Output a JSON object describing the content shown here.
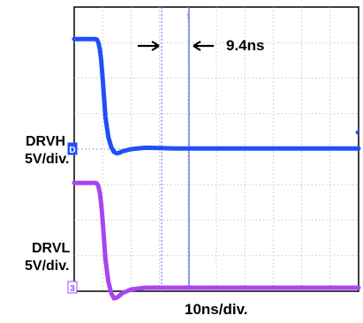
{
  "chart_data": {
    "type": "line",
    "x_axis": {
      "label": "10ns/div.",
      "divisions": 10,
      "ns_per_div": 10
    },
    "y_axis": {
      "divisions": 8
    },
    "grid": true,
    "cursors": {
      "annotation": "9.4ns",
      "marker": "↑"
    },
    "series": [
      {
        "name": "DRVH",
        "scale": "5V/div.",
        "color": "#1f4ff5",
        "ground_marker": "D",
        "x": [
          0,
          2,
          5,
          7.5,
          8,
          8.5,
          9,
          9.5,
          10,
          10.4,
          11,
          12,
          13,
          14,
          15,
          16,
          17,
          20,
          25,
          30,
          35,
          40,
          45,
          50,
          55,
          60,
          70,
          80,
          90,
          100
        ],
        "y": [
          3.1,
          3.1,
          3.1,
          3.1,
          3.08,
          3.0,
          2.82,
          2.5,
          2.0,
          1.55,
          0.9,
          0.35,
          0.06,
          -0.08,
          -0.12,
          -0.1,
          -0.06,
          0.0,
          0.04,
          0.03,
          0.02,
          0.02,
          0.02,
          0.02,
          0.02,
          0.02,
          0.02,
          0.02,
          0.02,
          0.02
        ]
      },
      {
        "name": "DRVL",
        "scale": "5V/div.",
        "color": "#a845f0",
        "ground_marker": "3",
        "x": [
          0,
          2,
          5,
          7.5,
          8,
          8.5,
          9,
          9.5,
          10,
          10.4,
          11,
          12,
          13,
          14,
          15,
          16,
          17,
          20,
          25,
          30,
          35,
          40,
          45,
          50,
          55,
          60,
          70,
          80,
          90,
          100
        ],
        "y": [
          -0.95,
          -0.95,
          -0.95,
          -0.95,
          -0.97,
          -1.05,
          -1.22,
          -1.55,
          -2.0,
          -2.45,
          -3.1,
          -3.72,
          -4.05,
          -4.2,
          -4.18,
          -4.12,
          -4.05,
          -3.95,
          -3.9,
          -3.9,
          -3.9,
          -3.9,
          -3.9,
          -3.9,
          -3.9,
          -3.9,
          -3.9,
          -3.9,
          -3.9,
          -3.9
        ]
      }
    ]
  },
  "labels": {
    "drvh_name": "DRVH",
    "drvh_scale": "5V/div.",
    "drvl_name": "DRVL",
    "drvl_scale": "5V/div.",
    "time_scale": "10ns/div.",
    "delta": "9.4ns"
  }
}
